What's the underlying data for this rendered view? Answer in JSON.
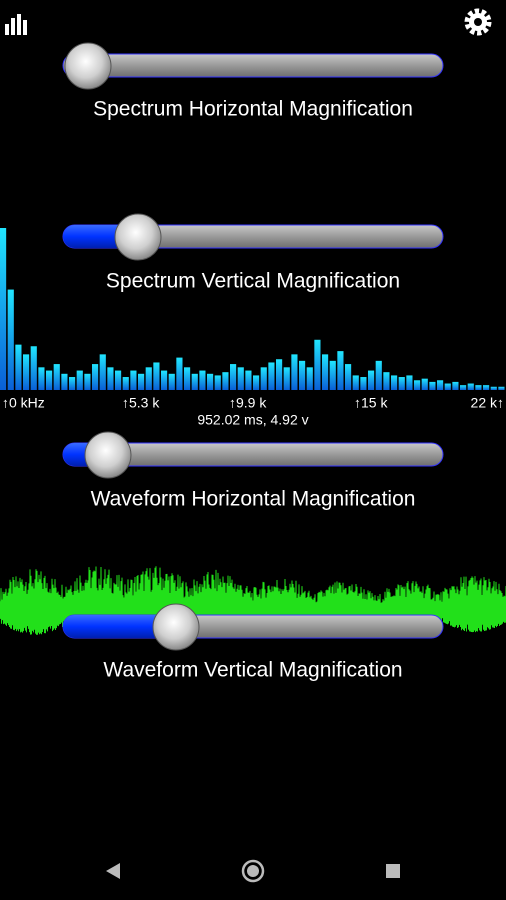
{
  "sliders": [
    {
      "label": "Spectrum Horizontal Magnification"
    },
    {
      "label": "Spectrum Vertical Magnification"
    },
    {
      "label": "Waveform Horizontal Magnification"
    },
    {
      "label": "Waveform Vertical Magnification"
    }
  ],
  "spectrum": {
    "freq_labels": [
      "↑0 kHz",
      "↑5.3 k",
      "↑9.9 k",
      "↑15 k",
      "22 k↑"
    ],
    "readout": "952.02 ms, 4.92 v",
    "levels": [
      100,
      62,
      28,
      22,
      27,
      14,
      12,
      16,
      10,
      8,
      12,
      10,
      16,
      22,
      14,
      12,
      8,
      12,
      10,
      14,
      17,
      12,
      10,
      20,
      14,
      10,
      12,
      10,
      9,
      11,
      16,
      14,
      12,
      9,
      14,
      17,
      19,
      14,
      22,
      18,
      14,
      31,
      22,
      18,
      24,
      16,
      9,
      8,
      12,
      18,
      11,
      9,
      8,
      9,
      6,
      7,
      5,
      6,
      4,
      5,
      3,
      4,
      3,
      3,
      2,
      2
    ],
    "level_max": 100
  }
}
